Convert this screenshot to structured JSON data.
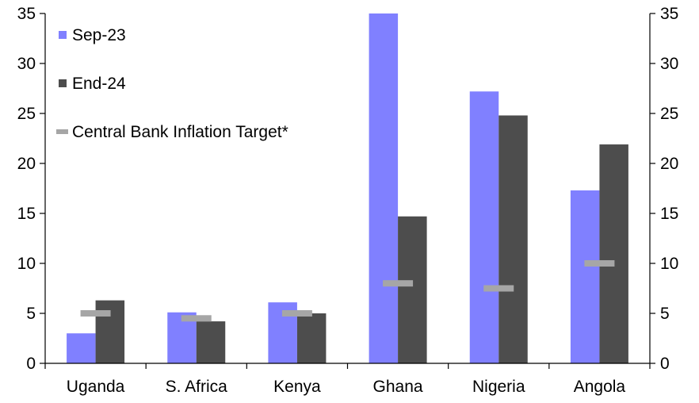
{
  "chart_data": {
    "type": "bar",
    "categories": [
      "Uganda",
      "S. Africa",
      "Kenya",
      "Ghana",
      "Nigeria",
      "Angola"
    ],
    "series": [
      {
        "name": "Sep-23",
        "kind": "bar",
        "color": "#8080ff",
        "values": [
          3.0,
          5.1,
          6.1,
          35.0,
          27.2,
          17.3
        ]
      },
      {
        "name": "End-24",
        "kind": "bar",
        "color": "#4d4d4d",
        "values": [
          6.3,
          4.2,
          5.0,
          14.7,
          24.8,
          21.9
        ]
      },
      {
        "name": "Central Bank Inflation Target*",
        "kind": "marker",
        "color": "#a6a6a6",
        "values": [
          5.0,
          4.5,
          5.0,
          8.0,
          7.5,
          10.0
        ]
      }
    ],
    "ylim": [
      0,
      35
    ],
    "yticks": [
      0,
      5,
      10,
      15,
      20,
      25,
      30,
      35
    ],
    "secondary_y_axis": true,
    "grid": false,
    "legend_position": "top-left"
  }
}
